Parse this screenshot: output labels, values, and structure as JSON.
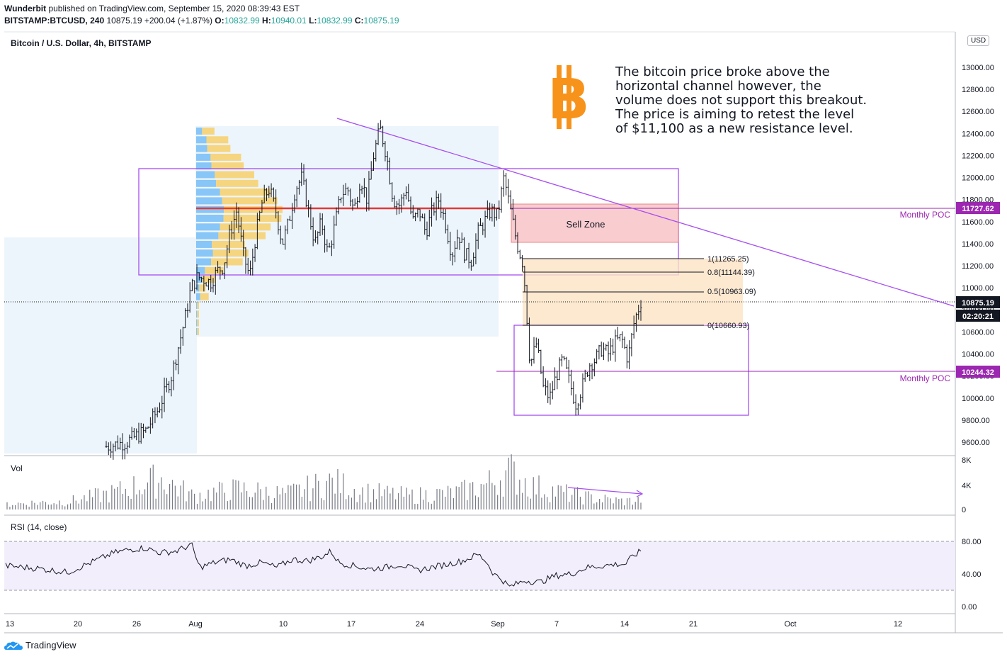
{
  "header": {
    "author": "Wunderbit",
    "published_text": "published on TradingView.com, September 15, 2020 08:39:43 EST",
    "symbol": "BITSTAMP:BTCUSD, 240",
    "last": "10875.19",
    "change": "+200.04 (+1.87%)",
    "o_label": "O:",
    "o": "10832.99",
    "h_label": "H:",
    "h": "10940.01",
    "l_label": "L:",
    "l": "10832.99",
    "c_label": "C:",
    "c": "10875.19"
  },
  "panes": {
    "main_title": "Bitcoin / U.S. Dollar, 4h, BITSTAMP",
    "vol_title": "Vol",
    "rsi_title": "RSI (14, close)"
  },
  "currency": "USD",
  "annotation": {
    "lines": [
      "The bitcoin price broke above the",
      "horizontal channel however, the",
      "volume does not support this breakout.",
      "The price is aiming to retest the level",
      "of $11,100 as a new resistance level."
    ]
  },
  "logo_glyph": "B",
  "labels": {
    "sell_zone": "Sell Zone",
    "monthly_poc_1": "Monthly POC",
    "monthly_poc_2": "Monthly POC",
    "fib_1": "1(11265.25)",
    "fib_08": "0.8(11144.39)",
    "fib_05": "0.5(10963.09)",
    "fib_0": "0(10660.93)",
    "price_tag_poc1": "11727.62",
    "price_tag_last": "10875.19",
    "price_tag_timer": "02:20:21",
    "price_tag_poc2": "10244.32"
  },
  "footer": {
    "brand": "TradingView"
  },
  "colors": {
    "up": "#26a69a",
    "down": "#ef5350",
    "candle": "#131722",
    "purple": "#9c27b0",
    "violet": "#a64df0",
    "poc_red": "#e53935",
    "sell_zone": "#f8c4c8",
    "fib_fill": "#fde4c4",
    "bitcoin_orange": "#f7931a"
  },
  "chart_data": {
    "type": "candlestick",
    "price_axis": {
      "min": 9500,
      "max": 13200,
      "ticks": [
        "13000.00",
        "12800.00",
        "12600.00",
        "12400.00",
        "12200.00",
        "12000.00",
        "11800.00",
        "11600.00",
        "11400.00",
        "11200.00",
        "11000.00",
        "10800.00",
        "10600.00",
        "10400.00",
        "10200.00",
        "10000.00",
        "9800.00",
        "9600.00"
      ]
    },
    "x_axis": {
      "ticks": [
        "13",
        "20",
        "26",
        "Aug",
        "10",
        "17",
        "24",
        "Sep",
        "7",
        "14",
        "21",
        "Oct",
        "12"
      ]
    },
    "volume_axis": {
      "ticks": [
        "8K",
        "4K",
        "0"
      ]
    },
    "rsi_axis": {
      "ticks": [
        "80.00",
        "40.00",
        "0.00"
      ],
      "band": [
        30,
        70
      ]
    },
    "levels": {
      "monthly_poc_high": 11727.62,
      "monthly_poc_low": 10244.32,
      "last_price": 10875.19,
      "fib_1": 11265.25,
      "fib_08": 11144.39,
      "fib_05": 10963.09,
      "fib_0": 10660.93,
      "sell_zone": [
        11410,
        11760
      ],
      "channel": [
        11120,
        12080
      ]
    },
    "price_path": [
      [
        0,
        9560
      ],
      [
        3,
        9600
      ],
      [
        6,
        9700
      ],
      [
        8,
        9900
      ],
      [
        10,
        10200
      ],
      [
        12,
        10700
      ],
      [
        13,
        11000
      ],
      [
        14,
        11100
      ],
      [
        16,
        11050
      ],
      [
        17,
        11150
      ],
      [
        18,
        11200
      ],
      [
        19,
        11500
      ],
      [
        20,
        11700
      ],
      [
        21,
        11300
      ],
      [
        22,
        11100
      ],
      [
        23,
        11500
      ],
      [
        24,
        11800
      ],
      [
        25,
        11900
      ],
      [
        26,
        11700
      ],
      [
        27,
        11400
      ],
      [
        28,
        11600
      ],
      [
        29,
        11900
      ],
      [
        30,
        12000
      ],
      [
        31,
        11700
      ],
      [
        32,
        11400
      ],
      [
        33,
        11600
      ],
      [
        34,
        11300
      ],
      [
        35,
        11550
      ],
      [
        36,
        11850
      ],
      [
        37,
        11900
      ],
      [
        38,
        11700
      ],
      [
        39,
        12000
      ],
      [
        40,
        11800
      ],
      [
        41,
        12200
      ],
      [
        42,
        12450
      ],
      [
        43,
        12200
      ],
      [
        44,
        11800
      ],
      [
        45,
        11750
      ],
      [
        46,
        11900
      ],
      [
        47,
        11600
      ],
      [
        48,
        11700
      ],
      [
        49,
        11500
      ],
      [
        50,
        11700
      ],
      [
        51,
        11800
      ],
      [
        52,
        11600
      ],
      [
        53,
        11300
      ],
      [
        54,
        11500
      ],
      [
        55,
        11300
      ],
      [
        56,
        11250
      ],
      [
        57,
        11500
      ],
      [
        58,
        11600
      ],
      [
        59,
        11700
      ],
      [
        60,
        11650
      ],
      [
        61,
        12000
      ],
      [
        62,
        11700
      ],
      [
        63,
        11400
      ],
      [
        64,
        11200
      ],
      [
        65,
        10300
      ],
      [
        66,
        10500
      ],
      [
        67,
        10100
      ],
      [
        68,
        10000
      ],
      [
        69,
        10200
      ],
      [
        70,
        10350
      ],
      [
        71,
        10150
      ],
      [
        72,
        9950
      ],
      [
        73,
        10100
      ],
      [
        74,
        10300
      ],
      [
        75,
        10350
      ],
      [
        76,
        10450
      ],
      [
        77,
        10400
      ],
      [
        78,
        10500
      ],
      [
        79,
        10550
      ],
      [
        80,
        10350
      ],
      [
        81,
        10700
      ],
      [
        82,
        10875
      ]
    ],
    "volume_path": [
      [
        0,
        0.8
      ],
      [
        8,
        1.2
      ],
      [
        14,
        2.5
      ],
      [
        20,
        4.5
      ],
      [
        24,
        2.0
      ],
      [
        30,
        3.0
      ],
      [
        36,
        2.2
      ],
      [
        42,
        4.0
      ],
      [
        46,
        2.6
      ],
      [
        52,
        2.0
      ],
      [
        58,
        2.4
      ],
      [
        62,
        3.6
      ],
      [
        65,
        5.5
      ],
      [
        68,
        3.4
      ],
      [
        72,
        2.4
      ],
      [
        76,
        1.6
      ],
      [
        80,
        1.2
      ],
      [
        82,
        1.4
      ]
    ],
    "rsi_path": [
      [
        0,
        50
      ],
      [
        4,
        47
      ],
      [
        8,
        42
      ],
      [
        10,
        50
      ],
      [
        12,
        58
      ],
      [
        14,
        66
      ],
      [
        16,
        70
      ],
      [
        18,
        72
      ],
      [
        20,
        66
      ],
      [
        22,
        68
      ],
      [
        24,
        76
      ],
      [
        25,
        48
      ],
      [
        27,
        54
      ],
      [
        29,
        58
      ],
      [
        31,
        50
      ],
      [
        33,
        54
      ],
      [
        35,
        48
      ],
      [
        37,
        58
      ],
      [
        39,
        56
      ],
      [
        41,
        62
      ],
      [
        42,
        68
      ],
      [
        43,
        54
      ],
      [
        45,
        50
      ],
      [
        47,
        46
      ],
      [
        49,
        48
      ],
      [
        51,
        52
      ],
      [
        53,
        44
      ],
      [
        55,
        48
      ],
      [
        57,
        52
      ],
      [
        59,
        56
      ],
      [
        61,
        64
      ],
      [
        62,
        56
      ],
      [
        63,
        40
      ],
      [
        64,
        34
      ],
      [
        65,
        24
      ],
      [
        67,
        32
      ],
      [
        69,
        30
      ],
      [
        71,
        38
      ],
      [
        73,
        40
      ],
      [
        75,
        48
      ],
      [
        77,
        50
      ],
      [
        79,
        52
      ],
      [
        80,
        52
      ],
      [
        81,
        62
      ],
      [
        82,
        68
      ]
    ]
  }
}
